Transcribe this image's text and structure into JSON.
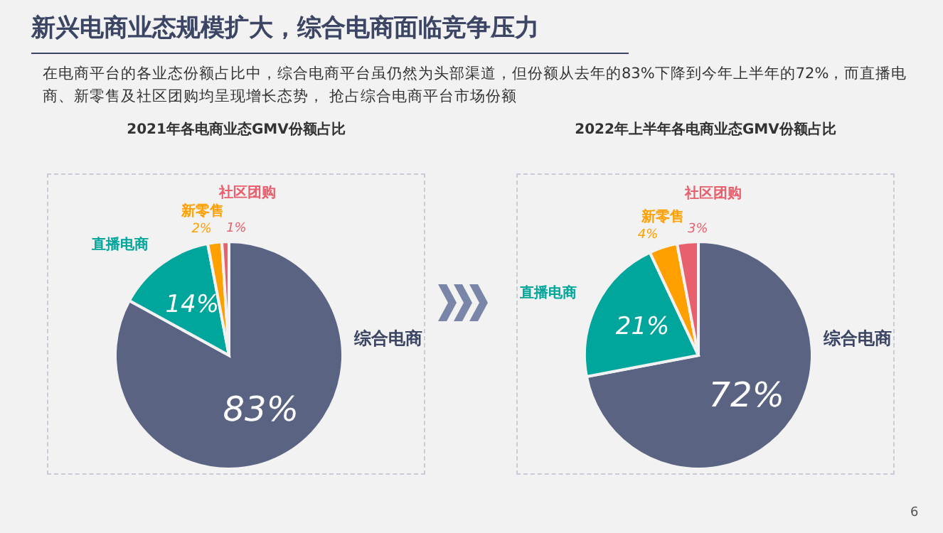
{
  "chart_data": [
    {
      "type": "pie",
      "title": "2021年各电商业态GMV份额占比",
      "categories": [
        "综合电商",
        "直播电商",
        "新零售",
        "社区团购"
      ],
      "values": [
        83,
        14,
        2,
        1
      ],
      "colors": [
        "#5a6482",
        "#00a59b",
        "#ffa000",
        "#e8606e"
      ],
      "value_labels": [
        "83%",
        "14%",
        "2%",
        "1%"
      ],
      "legend": false,
      "annotations": [
        "新兴电商业态规模扩大，综合电商面临竞争压力",
        "在电商平台的各业态份额占比中，综合电商平台虽仍然为头部渠道，但份额从去年的83%下降到今年上半年的72%，而直播电商、新零售及社区团购均呈现增长态势， 抢占综合电商平台市场份额"
      ]
    },
    {
      "type": "pie",
      "title": "2022年上半年各电商业态GMV份额占比",
      "categories": [
        "综合电商",
        "直播电商",
        "新零售",
        "社区团购"
      ],
      "values": [
        72,
        21,
        4,
        3
      ],
      "colors": [
        "#5a6482",
        "#00a59b",
        "#ffa000",
        "#e8606e"
      ],
      "value_labels": [
        "72%",
        "21%",
        "4%",
        "3%"
      ],
      "legend": false,
      "annotations": [
        "6"
      ]
    }
  ]
}
